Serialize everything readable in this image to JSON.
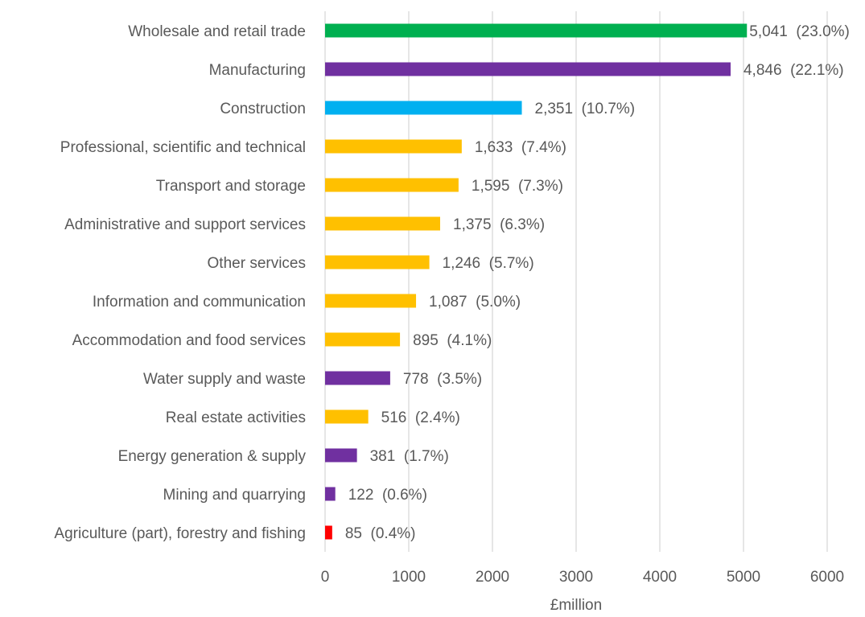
{
  "chart_data": {
    "type": "bar",
    "orientation": "horizontal",
    "x_label": "£million",
    "categories": [
      "Wholesale and retail trade",
      "Manufacturing",
      "Construction",
      "Professional, scientific and technical",
      "Transport and storage",
      "Administrative and support services",
      "Other services",
      "Information and communication",
      "Accommodation and food services",
      "Water supply and waste",
      "Real estate activities",
      "Energy generation & supply",
      "Mining and quarrying",
      "Agriculture (part), forestry and fishing"
    ],
    "values": [
      5041,
      4846,
      2351,
      1633,
      1595,
      1375,
      1246,
      1087,
      895,
      778,
      516,
      381,
      122,
      85
    ],
    "value_labels": [
      "5,041  (23.0%)",
      "4,846  (22.1%)",
      "2,351  (10.7%)",
      "1,633  (7.4%)",
      "1,595  (7.3%)",
      "1,375  (6.3%)",
      "1,246  (5.7%)",
      "1,087  (5.0%)",
      "895  (4.1%)",
      "778  (3.5%)",
      "516  (2.4%)",
      "381  (1.7%)",
      "122  (0.6%)",
      "85  (0.4%)"
    ],
    "colors": [
      "#00b050",
      "#7030a0",
      "#00b0f0",
      "#ffc000",
      "#ffc000",
      "#ffc000",
      "#ffc000",
      "#ffc000",
      "#ffc000",
      "#7030a0",
      "#ffc000",
      "#7030a0",
      "#7030a0",
      "#ff0000"
    ],
    "xlim": [
      0,
      6000
    ],
    "xticks": [
      0,
      1000,
      2000,
      3000,
      4000,
      5000,
      6000
    ],
    "grid": true
  }
}
